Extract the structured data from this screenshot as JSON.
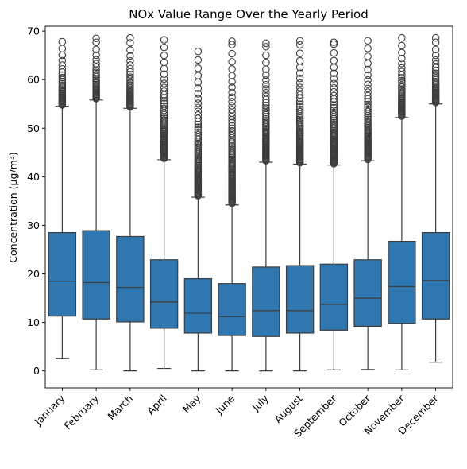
{
  "chart_data": {
    "type": "box",
    "title": "NOx Value Range Over the Yearly Period",
    "xlabel": "",
    "ylabel": "Concentration (µg/m³)",
    "ylim": [
      -3.5,
      71
    ],
    "yticks": [
      0,
      10,
      20,
      30,
      40,
      50,
      60,
      70
    ],
    "grid": false,
    "box_color": "#2e77b0",
    "line_color": "#3d3d3d",
    "categories": [
      "January",
      "February",
      "March",
      "April",
      "May",
      "June",
      "July",
      "August",
      "September",
      "October",
      "November",
      "December"
    ],
    "boxes": [
      {
        "min": 2.6,
        "q1": 11.3,
        "median": 18.5,
        "q3": 28.5,
        "max": 54.5,
        "outliers_from": 54.5,
        "outliers_to": 67.8
      },
      {
        "min": 0.2,
        "q1": 10.7,
        "median": 18.2,
        "q3": 28.9,
        "max": 55.8,
        "outliers_from": 55.8,
        "outliers_to": 68.5
      },
      {
        "min": 0.0,
        "q1": 10.1,
        "median": 17.2,
        "q3": 27.7,
        "max": 54.1,
        "outliers_from": 54.1,
        "outliers_to": 68.6
      },
      {
        "min": 0.5,
        "q1": 8.8,
        "median": 14.2,
        "q3": 22.9,
        "max": 43.5,
        "outliers_from": 43.5,
        "outliers_to": 68.2
      },
      {
        "min": 0.0,
        "q1": 7.8,
        "median": 11.9,
        "q3": 19.0,
        "max": 35.8,
        "outliers_from": 35.8,
        "outliers_to": 65.8
      },
      {
        "min": 0.0,
        "q1": 7.3,
        "median": 11.2,
        "q3": 18.0,
        "max": 34.2,
        "outliers_from": 34.2,
        "outliers_to": 67.9
      },
      {
        "min": 0.0,
        "q1": 7.1,
        "median": 12.4,
        "q3": 21.4,
        "max": 43.0,
        "outliers_from": 43.0,
        "outliers_to": 67.5
      },
      {
        "min": 0.0,
        "q1": 7.8,
        "median": 12.4,
        "q3": 21.7,
        "max": 42.6,
        "outliers_from": 42.6,
        "outliers_to": 68.0
      },
      {
        "min": 0.2,
        "q1": 8.4,
        "median": 13.7,
        "q3": 22.0,
        "max": 42.4,
        "outliers_from": 42.4,
        "outliers_to": 67.7
      },
      {
        "min": 0.3,
        "q1": 9.2,
        "median": 15.0,
        "q3": 22.9,
        "max": 43.3,
        "outliers_from": 43.3,
        "outliers_to": 68.0
      },
      {
        "min": 0.2,
        "q1": 9.8,
        "median": 17.4,
        "q3": 26.7,
        "max": 52.2,
        "outliers_from": 52.2,
        "outliers_to": 68.6
      },
      {
        "min": 1.8,
        "q1": 10.7,
        "median": 18.6,
        "q3": 28.5,
        "max": 55.0,
        "outliers_from": 55.0,
        "outliers_to": 68.6
      }
    ]
  }
}
